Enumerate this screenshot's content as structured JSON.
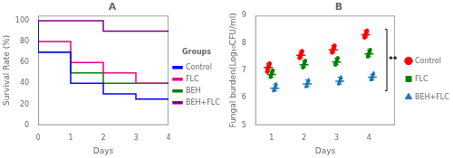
{
  "chart_data": [
    {
      "type": "line",
      "title": "A",
      "xlabel": "Days",
      "ylabel": "Survival Rate (%)",
      "xlim": [
        0,
        4
      ],
      "ylim": [
        0,
        105
      ],
      "xticks": [
        0,
        1,
        2,
        3,
        4
      ],
      "yticks": [
        0,
        20,
        40,
        60,
        80,
        100
      ],
      "grid": false,
      "legend": "right",
      "legend_title": "Groups",
      "line_style": "step",
      "series": [
        {
          "name": "Control",
          "color": "blue",
          "x": [
            0,
            1,
            2,
            3,
            4
          ],
          "values": [
            100,
            70,
            40,
            30,
            25
          ]
        },
        {
          "name": "FLC",
          "color": "#e8007f",
          "x": [
            0,
            1,
            2,
            3,
            4
          ],
          "values": [
            100,
            80,
            60,
            50,
            40
          ]
        },
        {
          "name": "BEH",
          "color": "green",
          "x": [
            0,
            1,
            2,
            3,
            4
          ],
          "values": [
            100,
            70,
            50,
            40,
            40
          ]
        },
        {
          "name": "BEH+FLC",
          "color": "purple",
          "x": [
            0,
            1,
            2,
            3,
            4
          ],
          "values": [
            100,
            100,
            100,
            90,
            90
          ]
        }
      ]
    },
    {
      "type": "scatter",
      "title": "B",
      "xlabel": "Days",
      "ylabel": "Fungal burden(Log₁₀CFU/ml)",
      "xlim": [
        0.5,
        4.8
      ],
      "ylim": [
        5,
        9
      ],
      "xticks": [
        1,
        2,
        3,
        4
      ],
      "yticks": [
        5,
        6,
        7,
        8,
        9
      ],
      "grid": false,
      "legend": "right",
      "series": [
        {
          "name": "Control",
          "color": "red",
          "marker": "circle",
          "x": [
            1,
            2,
            3,
            4
          ],
          "values": [
            7.1,
            7.55,
            7.75,
            8.3
          ],
          "err_low": [
            0.15,
            0.1,
            0.1,
            0.1
          ],
          "err_high": [
            0.15,
            0.15,
            0.15,
            0.15
          ],
          "points": [
            [
              6.95,
              7.05,
              7.1,
              7.15,
              7.2,
              7.25
            ],
            [
              7.45,
              7.5,
              7.55,
              7.6,
              7.65,
              7.7
            ],
            [
              7.65,
              7.7,
              7.75,
              7.8,
              7.85,
              7.9
            ],
            [
              8.2,
              8.25,
              8.3,
              8.35,
              8.4,
              8.45
            ]
          ]
        },
        {
          "name": "FLC",
          "color": "green",
          "marker": "square",
          "x": [
            1,
            2,
            3,
            4
          ],
          "values": [
            6.85,
            7.2,
            7.3,
            7.6
          ],
          "err_low": [
            0.1,
            0.1,
            0.1,
            0.1
          ],
          "err_high": [
            0.15,
            0.15,
            0.15,
            0.15
          ],
          "points": [
            [
              6.75,
              6.8,
              6.85,
              6.9,
              6.95,
              7.0
            ],
            [
              7.1,
              7.15,
              7.2,
              7.25,
              7.3,
              7.35
            ],
            [
              7.2,
              7.25,
              7.3,
              7.35,
              7.4,
              7.45
            ],
            [
              7.5,
              7.55,
              7.6,
              7.65,
              7.7,
              7.75
            ]
          ]
        },
        {
          "name": "BEH+FLC",
          "color": "#1f77b4",
          "marker": "triangle",
          "x": [
            1,
            2,
            3,
            4
          ],
          "values": [
            6.35,
            6.5,
            6.6,
            6.75
          ],
          "err_low": [
            0.1,
            0.1,
            0.1,
            0.1
          ],
          "err_high": [
            0.15,
            0.15,
            0.15,
            0.1
          ],
          "points": [
            [
              6.25,
              6.3,
              6.35,
              6.4,
              6.45,
              6.5
            ],
            [
              6.4,
              6.45,
              6.5,
              6.55,
              6.6,
              6.65
            ],
            [
              6.5,
              6.55,
              6.6,
              6.65,
              6.7,
              6.75
            ],
            [
              6.65,
              6.7,
              6.75,
              6.8,
              6.85,
              6.9
            ]
          ]
        }
      ],
      "annotations": [
        {
          "text": "**",
          "x": 4.55,
          "y_low": 6.25,
          "y_high": 8.5
        }
      ]
    }
  ]
}
